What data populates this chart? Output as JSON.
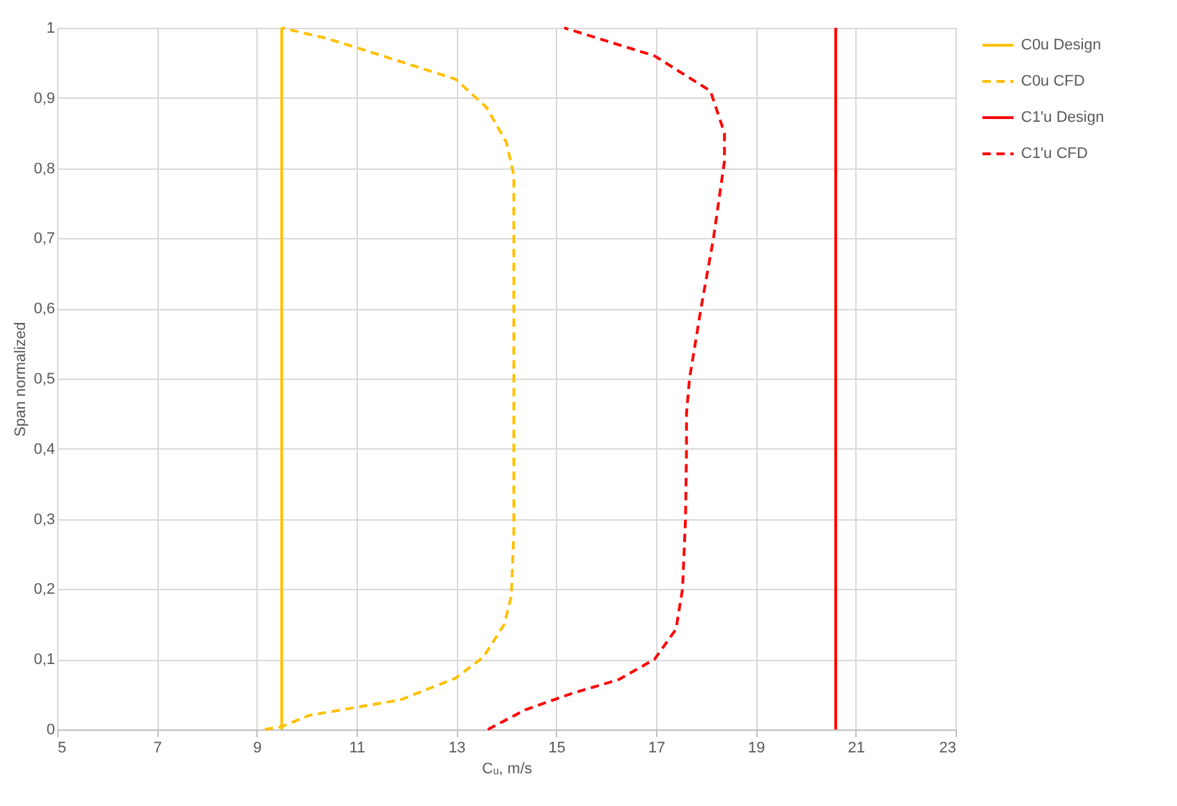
{
  "chart_data": {
    "type": "line",
    "xlabel": "Cᵤ, m/s",
    "ylabel": "Span normalized",
    "xlim": [
      5,
      23
    ],
    "xticks": [
      5,
      7,
      9,
      11,
      13,
      15,
      17,
      19,
      21,
      23
    ],
    "ylim": [
      0,
      1
    ],
    "yticks": [
      0,
      {
        "value": 0.1,
        "label": "0,1"
      },
      {
        "value": 0.2,
        "label": "0,2"
      },
      {
        "value": 0.3,
        "label": "0,3"
      },
      {
        "value": 0.4,
        "label": "0,4"
      },
      {
        "value": 0.5,
        "label": "0,5"
      },
      {
        "value": 0.6,
        "label": "0,6"
      },
      {
        "value": 0.7,
        "label": "0,7"
      },
      {
        "value": 0.8,
        "label": "0,8"
      },
      {
        "value": 0.9,
        "label": "0,9"
      },
      1
    ],
    "grid": true,
    "legend": "right",
    "marker": "none",
    "series": [
      {
        "name": "C0u Design",
        "color": "#ffc000",
        "line_style": "solid",
        "x": [
          9.5,
          9.5
        ],
        "values": [
          0,
          1
        ]
      },
      {
        "name": "C0u CFD",
        "color": "#ffc000",
        "line_style": "dashed",
        "x": [
          9.16,
          9.5,
          10.05,
          11.03,
          11.87,
          12.98,
          13.54,
          13.96,
          14.1,
          14.15,
          14.15,
          14.15,
          14.15,
          14.0,
          13.6,
          12.98,
          11.08,
          10.4,
          9.5
        ],
        "values": [
          0,
          0.004,
          0.02,
          0.032,
          0.042,
          0.073,
          0.103,
          0.15,
          0.19,
          0.28,
          0.43,
          0.63,
          0.79,
          0.837,
          0.887,
          0.927,
          0.97,
          0.985,
          1
        ]
      },
      {
        "name": "C1'u Design",
        "color": "#ff0000",
        "line_style": "solid",
        "x": [
          20.6,
          20.6
        ],
        "values": [
          0,
          1
        ]
      },
      {
        "name": "C1'u CFD",
        "color": "#ff0000",
        "line_style": "dashed",
        "x": [
          13.63,
          14.38,
          15.3,
          16.25,
          16.97,
          17.4,
          17.53,
          17.59,
          17.61,
          17.61,
          17.67,
          17.9,
          18.15,
          18.37,
          18.37,
          18.09,
          16.97,
          15.16
        ],
        "values": [
          0,
          0.028,
          0.051,
          0.071,
          0.1,
          0.143,
          0.2,
          0.3,
          0.4,
          0.45,
          0.5,
          0.6,
          0.7,
          0.81,
          0.85,
          0.91,
          0.96,
          1
        ]
      }
    ]
  }
}
